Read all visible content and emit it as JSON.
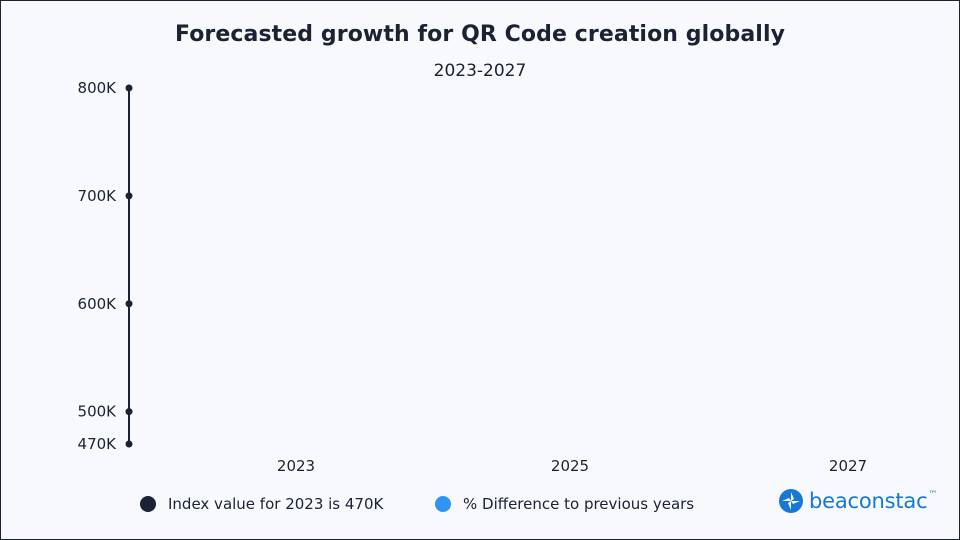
{
  "chart_data": {
    "type": "line",
    "title": "Forecasted growth for QR Code creation globally",
    "subtitle": "2023-2027",
    "ylim": [
      470,
      800
    ],
    "y_ticks": [
      {
        "value": 800,
        "label": "800K"
      },
      {
        "value": 700,
        "label": "700K"
      },
      {
        "value": 600,
        "label": "600K"
      },
      {
        "value": 500,
        "label": "500K"
      },
      {
        "value": 470,
        "label": "470K"
      }
    ],
    "x_ticks": [
      {
        "value": 2023,
        "label": "2023"
      },
      {
        "value": 2025,
        "label": "2025"
      },
      {
        "value": 2027,
        "label": "2027"
      }
    ],
    "xlim": [
      2022.0,
      2027.0
    ],
    "series": [],
    "legend": [
      {
        "label": "Index value for 2023 is 470K",
        "color": "#1a2233"
      },
      {
        "label": "% Difference to previous years",
        "color": "#2f95f2"
      }
    ]
  },
  "brand": {
    "name": "beaconstac",
    "trademark": "™",
    "color": "#1878d6"
  },
  "colors": {
    "axis": "#1a2233",
    "text": "#1a2233",
    "background": "#f7f9fc"
  }
}
